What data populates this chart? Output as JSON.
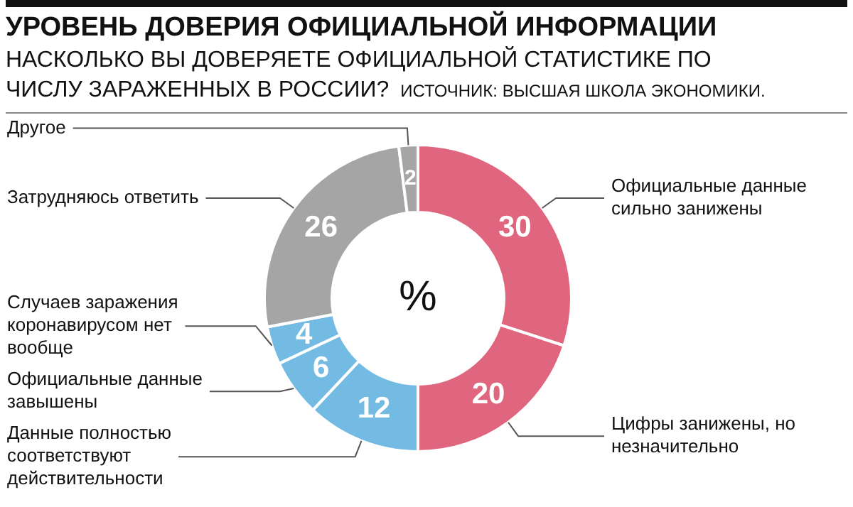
{
  "chart_data": {
    "type": "donut",
    "title": "УРОВЕНЬ ДОВЕРИЯ ОФИЦИАЛЬНОЙ ИНФОРМАЦИИ",
    "subtitle": "НАСКОЛЬКО ВЫ ДОВЕРЯЕТЕ ОФИЦИАЛЬНОЙ СТАТИСТИКЕ ПО ЧИСЛУ ЗАРАЖЕННЫХ В РОССИИ?",
    "annotations": [
      "ИСТОЧНИК: ВЫСШАЯ ШКОЛА ЭКОНОМИКИ.",
      "%"
    ],
    "categories": [
      "Официальные данные сильно занижены",
      "Цифры занижены, но незначительно",
      "Данные полностью соответствуют действительности",
      "Официальные данные завышены",
      "Случаев заражения коронавирусом нет вообще",
      "Затрудняюсь ответить",
      "Другое"
    ],
    "values": [
      30,
      20,
      12,
      6,
      4,
      26,
      2
    ],
    "colors": [
      "#e0667f",
      "#e0667f",
      "#74bbe4",
      "#74bbe4",
      "#74bbe4",
      "#a5a5a5",
      "#a5a5a5"
    ],
    "data_labels": true,
    "legend": false
  }
}
